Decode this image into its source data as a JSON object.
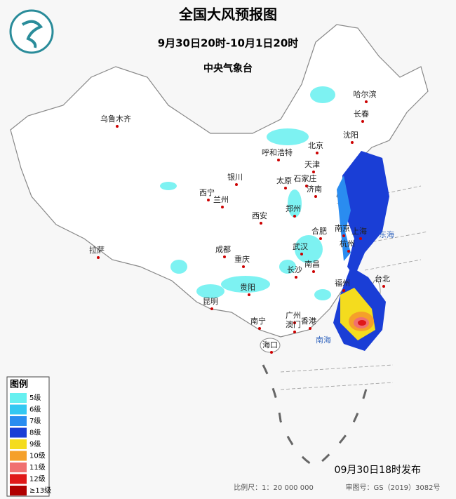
{
  "header": {
    "title": "全国大风预报图",
    "period": "9月30日20时-10月1日20时",
    "issuer": "中央气象台"
  },
  "legend": {
    "title": "图例",
    "items": [
      {
        "label": "5级",
        "color": "#66f0f0"
      },
      {
        "label": "6级",
        "color": "#33c8f2"
      },
      {
        "label": "7级",
        "color": "#2a8cf0"
      },
      {
        "label": "8级",
        "color": "#1a3ed6"
      },
      {
        "label": "9级",
        "color": "#f4dc1e"
      },
      {
        "label": "10级",
        "color": "#f5a02a"
      },
      {
        "label": "11级",
        "color": "#f07070"
      },
      {
        "label": "12级",
        "color": "#e01818"
      },
      {
        "label": "≥13级",
        "color": "#b00000"
      }
    ]
  },
  "cities": [
    "乌鲁木齐",
    "哈尔滨",
    "长春",
    "沈阳",
    "呼和浩特",
    "北京",
    "天津",
    "石家庄",
    "太原",
    "济南",
    "银川",
    "西宁",
    "兰州",
    "郑州",
    "西安",
    "南京",
    "合肥",
    "上海",
    "杭州",
    "武汉",
    "成都",
    "重庆",
    "长沙",
    "南昌",
    "福州",
    "台北",
    "拉萨",
    "贵阳",
    "昆明",
    "南宁",
    "广州",
    "澳门",
    "香港",
    "海口"
  ],
  "seas": [
    "东海",
    "南海"
  ],
  "footer": {
    "published": "09月30日18时发布",
    "scale": "比例尺：1：20 000 000",
    "approval": "审图号：GS（2019）3082号"
  }
}
